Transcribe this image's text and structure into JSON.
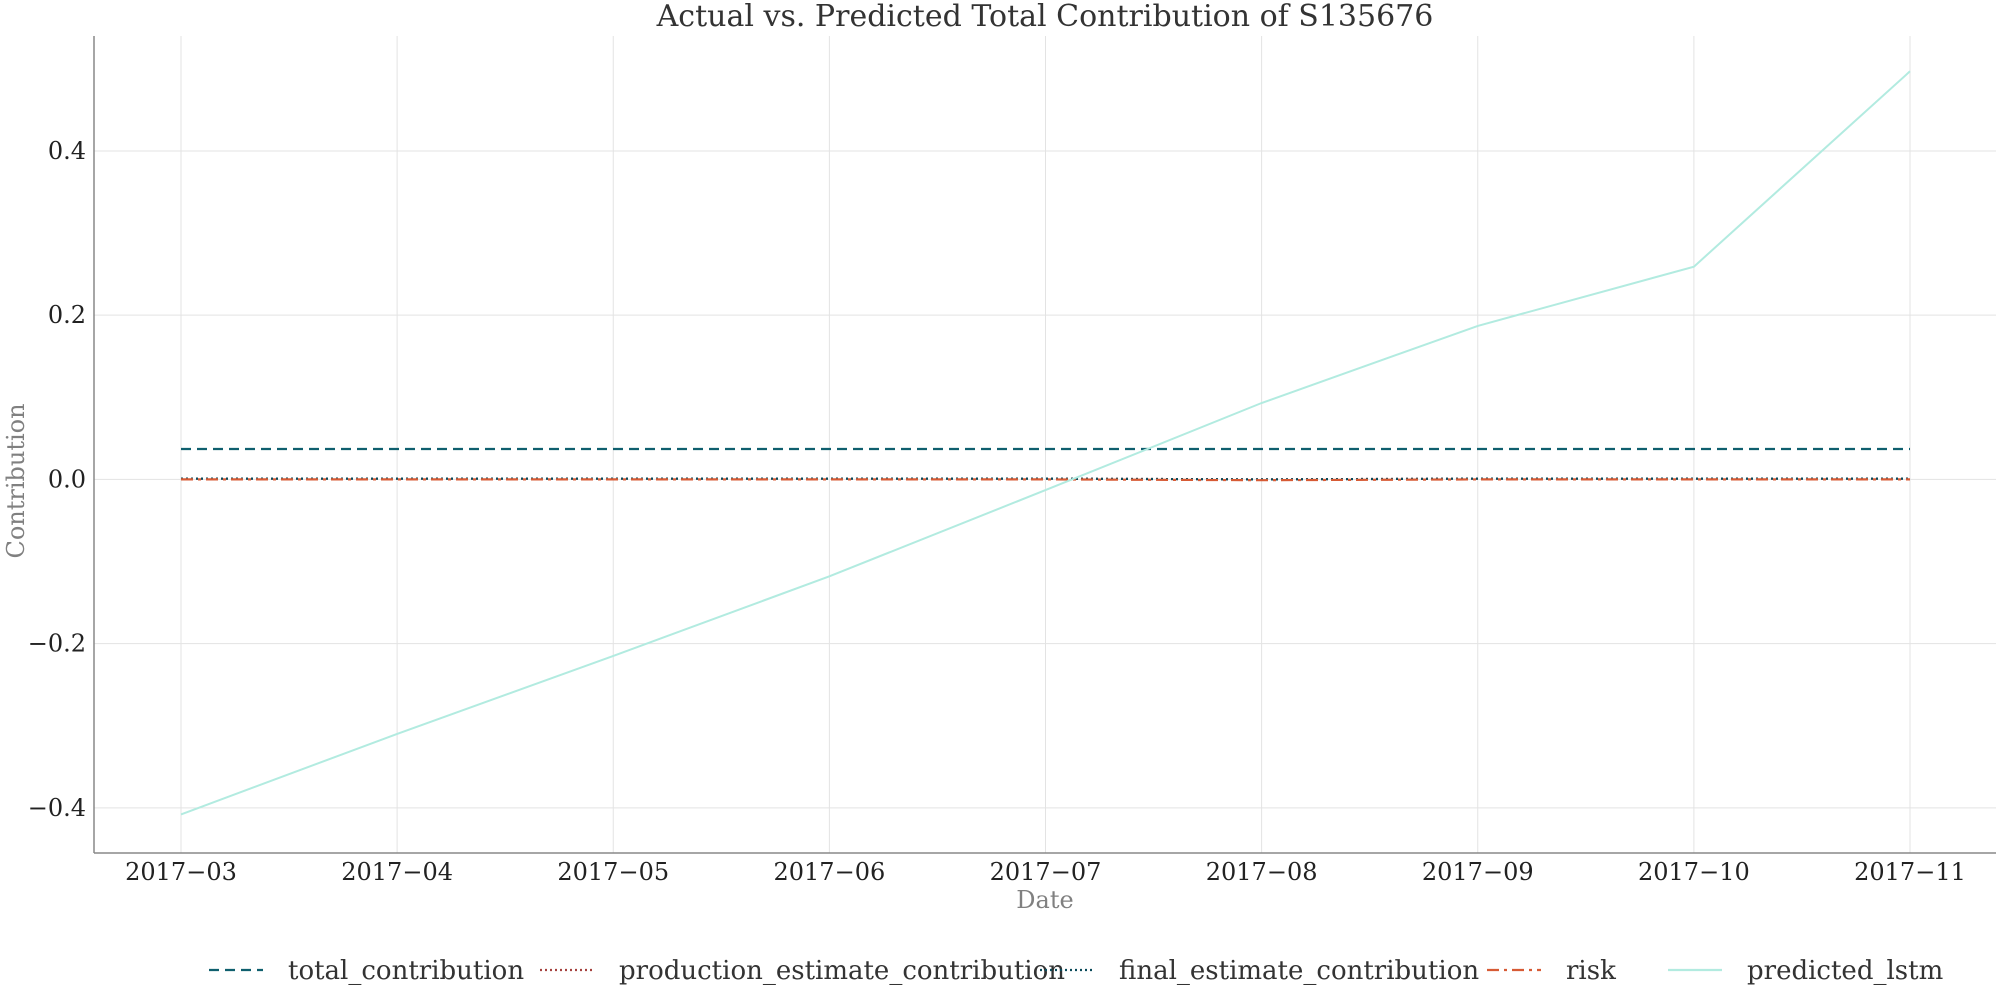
{
  "chart_data": {
    "type": "line",
    "title": "Actual vs. Predicted Total Contribution of S135676",
    "xlabel": "Date",
    "ylabel": "Contribution",
    "x": [
      "2017-03",
      "2017-04",
      "2017-05",
      "2017-06",
      "2017-07",
      "2017-08",
      "2017-09",
      "2017-10",
      "2017-11"
    ],
    "xtick_labels": [
      "2017−03",
      "2017−04",
      "2017−05",
      "2017−06",
      "2017−07",
      "2017−08",
      "2017−09",
      "2017−10",
      "2017−11"
    ],
    "yticks": [
      -0.4,
      -0.2,
      0.0,
      0.2,
      0.4
    ],
    "ytick_labels": [
      "−0.4",
      "−0.2",
      "0.0",
      "0.2",
      "0.4"
    ],
    "ylim": [
      -0.455,
      0.54
    ],
    "grid": true,
    "legend_position": "bottom",
    "series": [
      {
        "name": "total_contribution",
        "legend_label": "total_contribution",
        "color": "#0f5f6e",
        "style": "dashed",
        "values": [
          0.037,
          0.037,
          0.037,
          0.037,
          0.037,
          0.037,
          0.037,
          0.037,
          0.037
        ]
      },
      {
        "name": "production_estimate_contribution",
        "legend_label": "production_estimate_contribution",
        "color": "#a5423e",
        "style": "dotted",
        "values": [
          0.001,
          0.001,
          0.001,
          0.001,
          0.001,
          0.0,
          0.001,
          0.001,
          0.001
        ]
      },
      {
        "name": "final_estimate_contribution",
        "legend_label": "final_estimate_contribution",
        "color": "#0a4a5a",
        "style": "dotted",
        "values": [
          0.001,
          0.001,
          0.001,
          0.001,
          0.001,
          0.0,
          0.001,
          0.001,
          0.001
        ]
      },
      {
        "name": "risk",
        "legend_label": "risk",
        "color": "#d75b35",
        "style": "dashdot",
        "values": [
          0.0,
          0.0,
          0.0,
          0.0,
          0.0,
          -0.001,
          0.0,
          0.0,
          0.0
        ]
      },
      {
        "name": "predicted_lstm",
        "legend_label": "predicted_lstm",
        "color": "#b2ebe0",
        "style": "solid",
        "values": [
          -0.408,
          -0.31,
          -0.215,
          -0.118,
          -0.013,
          0.093,
          0.187,
          0.259,
          0.497
        ]
      }
    ]
  }
}
